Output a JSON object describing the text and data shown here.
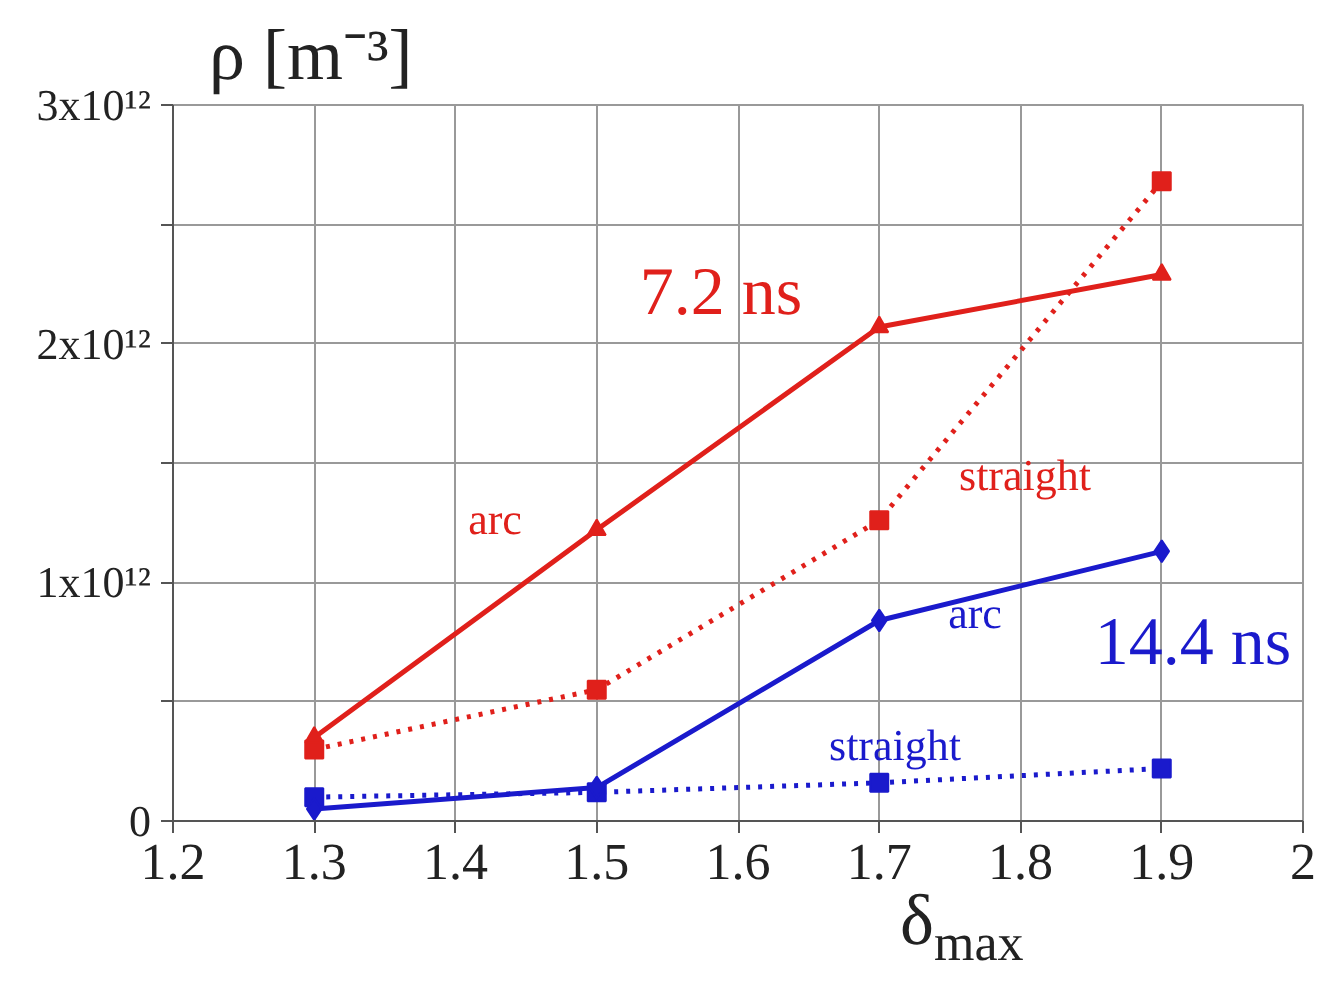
{
  "chart_data": {
    "type": "line",
    "xlabel": "δ$_{max}$",
    "ylabel": "ρ [m⁻³]",
    "xlim": [
      1.2,
      2
    ],
    "xticks": [
      1.2,
      1.3,
      1.4,
      1.5,
      1.6,
      1.7,
      1.8,
      1.9,
      2
    ],
    "ylim": [
      0,
      3000000000000.0
    ],
    "yticks": [
      0,
      {
        "value": 500000000000.0,
        "label": null
      },
      {
        "value": 1000000000000.0,
        "label": "1x10¹²"
      },
      {
        "value": 1500000000000.0,
        "label": null
      },
      {
        "value": 2000000000000.0,
        "label": "2x10¹²"
      },
      {
        "value": 2500000000000.0,
        "label": null
      },
      {
        "value": 3000000000000.0,
        "label": "3x10¹²"
      }
    ],
    "grid": true,
    "x": [
      1.3,
      1.5,
      1.7,
      1.9
    ],
    "series": [
      {
        "name": "arc",
        "color": "#e0201b",
        "values": [
          350000000000.0,
          1220000000000.0,
          2070000000000.0,
          2290000000000.0
        ],
        "marker": "triangle",
        "line_style": "solid"
      },
      {
        "name": "straight",
        "color": "#e0201b",
        "values": [
          300000000000.0,
          550000000000.0,
          1260000000000.0,
          2680000000000.0
        ],
        "marker": "square",
        "line_style": "dotted"
      },
      {
        "name": "arc",
        "color": "#1a1acc",
        "values": [
          50000000000.0,
          140000000000.0,
          840000000000.0,
          1130000000000.0
        ],
        "marker": "diamond",
        "line_style": "solid"
      },
      {
        "name": "straight",
        "color": "#1a1acc",
        "values": [
          100000000000.0,
          120000000000.0,
          160000000000.0,
          220000000000.0
        ],
        "marker": "square",
        "line_style": "dotted"
      }
    ],
    "annotations": [
      "7.2 ns",
      "14.4 ns"
    ]
  }
}
